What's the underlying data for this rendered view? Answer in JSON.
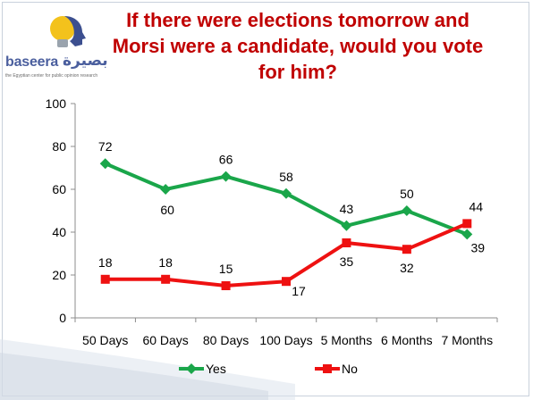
{
  "title": "If there were elections tomorrow and Morsi were a candidate, would you vote for him?",
  "logo": {
    "name": "baseera",
    "name_arabic": "بصيرة",
    "tagline": "the Egyptian center for public opinion research"
  },
  "colors": {
    "title": "#c00000",
    "yes": "#1aa64a",
    "no": "#ee1111",
    "axis": "#8c8c8c"
  },
  "chart_data": {
    "type": "line",
    "title": "If there were elections tomorrow and Morsi were a candidate, would you vote for him?",
    "categories": [
      "50 Days",
      "60 Days",
      "80 Days",
      "100 Days",
      "5 Months",
      "6 Months",
      "7 Months"
    ],
    "yticks": [
      "0",
      "20",
      "40",
      "60",
      "80",
      "100"
    ],
    "ylim": [
      0,
      100
    ],
    "grid": false,
    "legend": "bottom",
    "series": [
      {
        "name": "Yes",
        "values": [
          72,
          60,
          66,
          58,
          43,
          50,
          39
        ],
        "labels": [
          "72",
          "60",
          "66",
          "58",
          "43",
          "50",
          "39"
        ],
        "marker": "diamond"
      },
      {
        "name": "No",
        "values": [
          18,
          18,
          15,
          17,
          35,
          32,
          44
        ],
        "labels": [
          "18",
          "18",
          "15",
          "17",
          "35",
          "32",
          "44"
        ],
        "marker": "square"
      }
    ]
  }
}
